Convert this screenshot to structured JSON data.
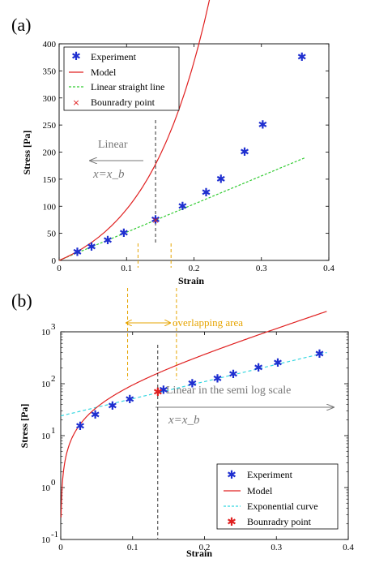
{
  "colors": {
    "experiment": "#1f2fd0",
    "model": "#e02020",
    "linear": "#33cc33",
    "exponential": "#33d6e0",
    "boundary": "#e02020",
    "annotation": "#777777",
    "overlap": "#e6a400"
  },
  "chart_data": [
    {
      "panel_label": "(a)",
      "type": "line",
      "xlabel": "Strain",
      "ylabel": "Stress [Pa]",
      "xlim": [
        0,
        0.4
      ],
      "ylim": [
        0,
        400
      ],
      "xticks": [
        "0",
        "0.1",
        "0.2",
        "0.3",
        "0.4"
      ],
      "yticks": [
        "0",
        "50",
        "100",
        "150",
        "200",
        "250",
        "300",
        "350",
        "400"
      ],
      "legend_position": "top-left",
      "legend": [
        "Experiment",
        "Model",
        "Linear straight line",
        "Bounradry point"
      ],
      "experiment": {
        "x": [
          0.027,
          0.048,
          0.072,
          0.096,
          0.143,
          0.183,
          0.218,
          0.24,
          0.275,
          0.302,
          0.36
        ],
        "y": [
          15,
          25,
          37,
          50,
          75,
          100,
          125,
          150,
          200,
          250,
          375
        ]
      },
      "model": {
        "a": 50,
        "k": 10.6,
        "b": -0.4,
        "x_end": 0.37
      },
      "linear_line": {
        "slope": 520,
        "intercept": 0,
        "x_end": 0.365
      },
      "boundary_point": {
        "x": 0.143,
        "y": 75
      },
      "annotations": {
        "linear_label": "Linear",
        "xb_label": "x=x_b",
        "xb_x": 0.143
      },
      "overlap_marks_x": [
        0.117,
        0.166
      ]
    },
    {
      "panel_label": "(b)",
      "type": "line",
      "scale": "semilog-y",
      "xlabel": "Strain",
      "ylabel": "Stress [Pa]",
      "xlim": [
        0,
        0.4
      ],
      "ylim": [
        0.1,
        1000
      ],
      "xticks": [
        "0",
        "0.1",
        "0.2",
        "0.3",
        "0.4"
      ],
      "ytick_exponents": [
        "-1",
        "0",
        "1",
        "2",
        "3"
      ],
      "legend_position": "bottom-right",
      "legend": [
        "Experiment",
        "Model",
        "Exponential curve",
        "Bounradry point"
      ],
      "experiment": {
        "x": [
          0.027,
          0.048,
          0.072,
          0.096,
          0.143,
          0.183,
          0.218,
          0.24,
          0.275,
          0.302,
          0.36
        ],
        "y": [
          15,
          25,
          37,
          50,
          75,
          100,
          125,
          150,
          200,
          250,
          375
        ]
      },
      "exponential_curve": {
        "a": 24,
        "k": 7.6,
        "x_end": 0.37
      },
      "boundary_point": {
        "x": 0.135,
        "y": 68
      },
      "annotations": {
        "semilog_label": "Linear in the semi log scale",
        "xb_label": "x=x_b",
        "xb_x": 0.135,
        "overlap_label": "overlapping area"
      },
      "overlap_marks_x": [
        0.093,
        0.161
      ]
    }
  ]
}
